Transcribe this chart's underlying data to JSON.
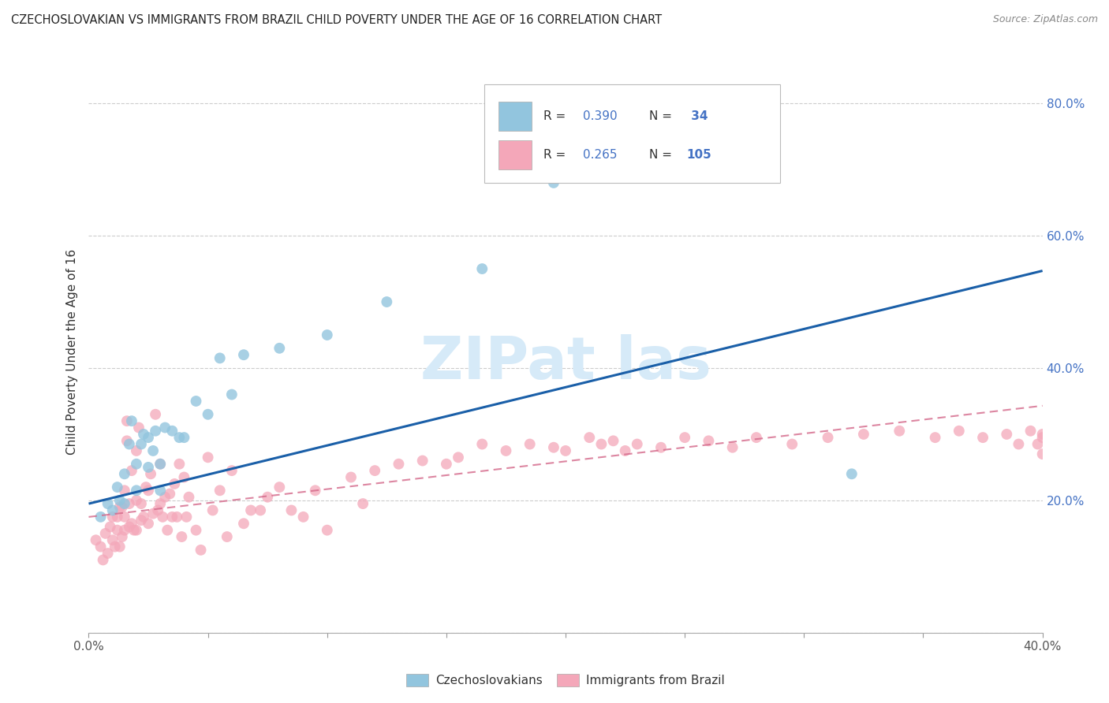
{
  "title": "CZECHOSLOVAKIAN VS IMMIGRANTS FROM BRAZIL CHILD POVERTY UNDER THE AGE OF 16 CORRELATION CHART",
  "source": "Source: ZipAtlas.com",
  "ylabel": "Child Poverty Under the Age of 16",
  "xlim": [
    0.0,
    0.4
  ],
  "ylim": [
    0.0,
    0.85
  ],
  "legend1_R": "0.390",
  "legend1_N": "34",
  "legend2_R": "0.265",
  "legend2_N": "105",
  "blue_color": "#92c5de",
  "pink_color": "#f4a7b9",
  "line_blue": "#1a5fa8",
  "line_pink": "#d4688a",
  "watermark_color": "#d6eaf8",
  "blue_line_intercept": 0.195,
  "blue_line_slope": 0.88,
  "pink_line_intercept": 0.175,
  "pink_line_slope": 0.42,
  "blue_scatter_x": [
    0.005,
    0.008,
    0.01,
    0.012,
    0.013,
    0.015,
    0.015,
    0.017,
    0.018,
    0.02,
    0.02,
    0.022,
    0.023,
    0.025,
    0.025,
    0.027,
    0.028,
    0.03,
    0.03,
    0.032,
    0.035,
    0.038,
    0.04,
    0.045,
    0.05,
    0.055,
    0.06,
    0.065,
    0.08,
    0.1,
    0.125,
    0.165,
    0.195,
    0.32
  ],
  "blue_scatter_y": [
    0.175,
    0.195,
    0.185,
    0.22,
    0.2,
    0.195,
    0.24,
    0.285,
    0.32,
    0.215,
    0.255,
    0.285,
    0.3,
    0.25,
    0.295,
    0.275,
    0.305,
    0.215,
    0.255,
    0.31,
    0.305,
    0.295,
    0.295,
    0.35,
    0.33,
    0.415,
    0.36,
    0.42,
    0.43,
    0.45,
    0.5,
    0.55,
    0.68,
    0.24
  ],
  "pink_scatter_x": [
    0.003,
    0.005,
    0.006,
    0.007,
    0.008,
    0.009,
    0.01,
    0.01,
    0.011,
    0.012,
    0.012,
    0.013,
    0.013,
    0.014,
    0.014,
    0.015,
    0.015,
    0.015,
    0.016,
    0.016,
    0.017,
    0.017,
    0.018,
    0.018,
    0.019,
    0.02,
    0.02,
    0.02,
    0.021,
    0.022,
    0.022,
    0.023,
    0.024,
    0.025,
    0.025,
    0.026,
    0.027,
    0.028,
    0.029,
    0.03,
    0.03,
    0.031,
    0.032,
    0.033,
    0.034,
    0.035,
    0.036,
    0.037,
    0.038,
    0.039,
    0.04,
    0.041,
    0.042,
    0.045,
    0.047,
    0.05,
    0.052,
    0.055,
    0.058,
    0.06,
    0.065,
    0.068,
    0.072,
    0.075,
    0.08,
    0.085,
    0.09,
    0.095,
    0.1,
    0.11,
    0.115,
    0.12,
    0.13,
    0.14,
    0.15,
    0.155,
    0.165,
    0.175,
    0.185,
    0.195,
    0.2,
    0.21,
    0.215,
    0.22,
    0.225,
    0.23,
    0.24,
    0.25,
    0.26,
    0.27,
    0.28,
    0.295,
    0.31,
    0.325,
    0.34,
    0.355,
    0.365,
    0.375,
    0.385,
    0.39,
    0.395,
    0.398,
    0.4,
    0.4,
    0.4
  ],
  "pink_scatter_y": [
    0.14,
    0.13,
    0.11,
    0.15,
    0.12,
    0.16,
    0.14,
    0.175,
    0.13,
    0.155,
    0.175,
    0.13,
    0.19,
    0.145,
    0.19,
    0.155,
    0.175,
    0.215,
    0.29,
    0.32,
    0.16,
    0.195,
    0.165,
    0.245,
    0.155,
    0.155,
    0.2,
    0.275,
    0.31,
    0.17,
    0.195,
    0.175,
    0.22,
    0.165,
    0.215,
    0.24,
    0.18,
    0.33,
    0.185,
    0.195,
    0.255,
    0.175,
    0.205,
    0.155,
    0.21,
    0.175,
    0.225,
    0.175,
    0.255,
    0.145,
    0.235,
    0.175,
    0.205,
    0.155,
    0.125,
    0.265,
    0.185,
    0.215,
    0.145,
    0.245,
    0.165,
    0.185,
    0.185,
    0.205,
    0.22,
    0.185,
    0.175,
    0.215,
    0.155,
    0.235,
    0.195,
    0.245,
    0.255,
    0.26,
    0.255,
    0.265,
    0.285,
    0.275,
    0.285,
    0.28,
    0.275,
    0.295,
    0.285,
    0.29,
    0.275,
    0.285,
    0.28,
    0.295,
    0.29,
    0.28,
    0.295,
    0.285,
    0.295,
    0.3,
    0.305,
    0.295,
    0.305,
    0.295,
    0.3,
    0.285,
    0.305,
    0.285,
    0.3,
    0.27,
    0.295
  ]
}
